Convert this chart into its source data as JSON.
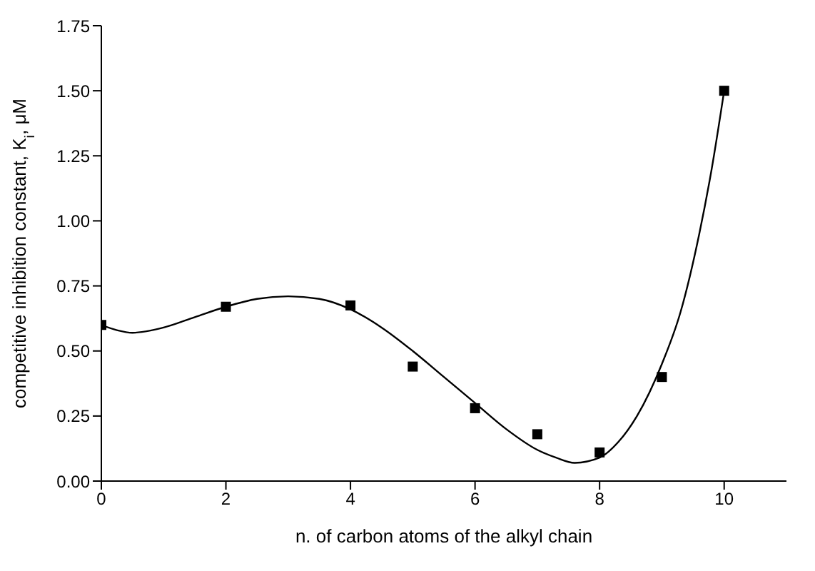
{
  "chart_data": {
    "type": "scatter",
    "xlabel": "n. of carbon atoms of the alkyl chain",
    "ylabel": "competitive inhibition constant, K$_{i}$, μM",
    "xlim": [
      0,
      11
    ],
    "xticks": [
      0,
      2,
      4,
      6,
      8,
      10
    ],
    "ylim": [
      0,
      1.75
    ],
    "yticks": [
      {
        "value": 0,
        "label": "0.00"
      },
      {
        "value": 0.25,
        "label": "0.25"
      },
      {
        "value": 0.5,
        "label": "0.50"
      },
      {
        "value": 0.75,
        "label": "0.75"
      },
      {
        "value": 1,
        "label": "1.00"
      },
      {
        "value": 1.25,
        "label": "1.25"
      },
      {
        "value": 1.5,
        "label": "1.50"
      },
      {
        "value": 1.75,
        "label": "1.75"
      }
    ],
    "grid": false,
    "series": [
      {
        "type": "line",
        "color": "#000000",
        "marker": "none",
        "line_style": "solid",
        "x": [
          0,
          0.25,
          0.5,
          1,
          1.5,
          2,
          2.5,
          3,
          3.5,
          4,
          4.5,
          5,
          5.5,
          6,
          6.5,
          7,
          7.3,
          7.6,
          8,
          8.3,
          8.6,
          9,
          9.3,
          9.6,
          9.8,
          10
        ],
        "values": [
          0.6,
          0.58,
          0.57,
          0.59,
          0.63,
          0.67,
          0.7,
          0.71,
          0.7,
          0.66,
          0.59,
          0.5,
          0.4,
          0.3,
          0.2,
          0.12,
          0.09,
          0.07,
          0.09,
          0.15,
          0.25,
          0.45,
          0.65,
          0.95,
          1.2,
          1.5
        ]
      },
      {
        "color": "#000000",
        "marker": "square",
        "x": [
          0,
          2,
          4,
          5,
          6,
          7,
          8,
          9,
          10
        ],
        "values": [
          0.6,
          0.67,
          0.675,
          0.44,
          0.28,
          0.18,
          0.11,
          0.4,
          1.5
        ]
      }
    ]
  }
}
